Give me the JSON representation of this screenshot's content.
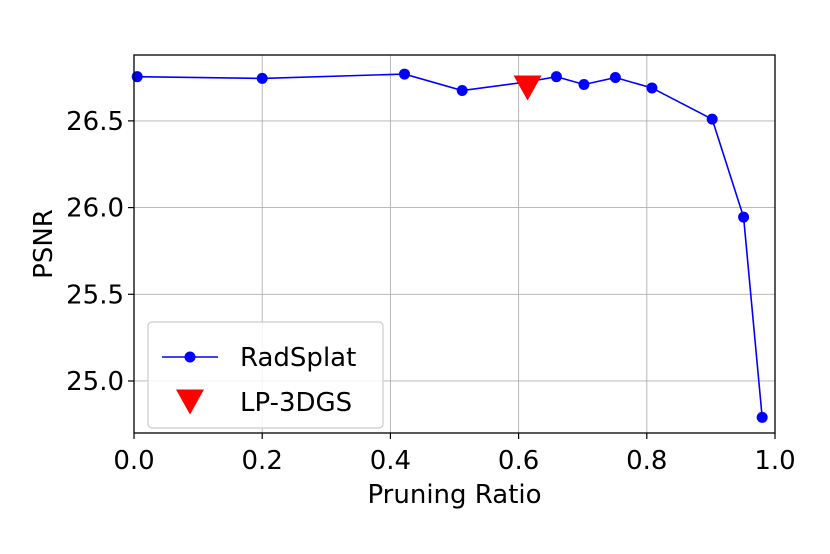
{
  "chart_data": {
    "type": "line",
    "title": "",
    "xlabel": "Pruning Ratio",
    "ylabel": "PSNR",
    "xlim": [
      0.0,
      1.0
    ],
    "ylim": [
      24.7,
      26.88
    ],
    "xticks": [
      0.0,
      0.2,
      0.4,
      0.6,
      0.8,
      1.0
    ],
    "xtick_labels": [
      "0.0",
      "0.2",
      "0.4",
      "0.6",
      "0.8",
      "1.0"
    ],
    "yticks": [
      25.0,
      25.5,
      26.0,
      26.5
    ],
    "ytick_labels": [
      "25.0",
      "25.5",
      "26.0",
      "26.5"
    ],
    "grid": true,
    "legend_position": "lower-left",
    "series": [
      {
        "name": "RadSplat",
        "marker": "circle",
        "color": "#0000ff",
        "x": [
          0.005,
          0.2,
          0.422,
          0.512,
          0.614,
          0.659,
          0.702,
          0.751,
          0.808,
          0.902,
          0.951,
          0.98
        ],
        "y": [
          26.755,
          26.745,
          26.77,
          26.675,
          26.725,
          26.755,
          26.71,
          26.75,
          26.69,
          26.51,
          25.945,
          24.79
        ]
      },
      {
        "name": "LP-3DGS",
        "marker": "triangle-down",
        "color": "#ff0000",
        "x": [
          0.614
        ],
        "y": [
          26.69
        ]
      }
    ]
  }
}
